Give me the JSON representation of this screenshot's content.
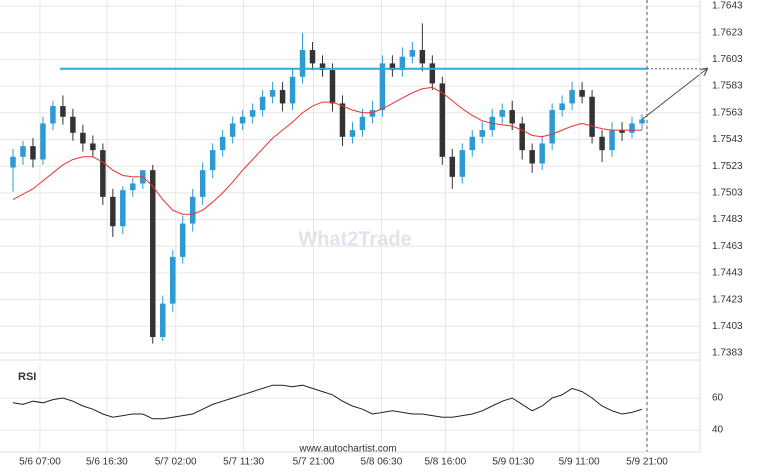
{
  "chart_data": [
    {
      "type": "candlestick",
      "level": 1.7596,
      "level_color": "#2ea8e0",
      "up_color": "#2d9bd2",
      "down_color": "#333333",
      "ma_color": "#e8322f",
      "watermark": "What2Trade",
      "footer": "www.autochartist.com",
      "grid": true,
      "open": [
        1.7522,
        1.753,
        1.7538,
        1.7528,
        1.7555,
        1.7568,
        1.756,
        1.7548,
        1.754,
        1.7535,
        1.75,
        1.7478,
        1.7505,
        1.751,
        1.752,
        1.7395,
        1.742,
        1.7455,
        1.748,
        1.75,
        1.752,
        1.7535,
        1.7545,
        1.7555,
        1.756,
        1.7565,
        1.7575,
        1.758,
        1.757,
        1.759,
        1.761,
        1.76,
        1.7595,
        1.757,
        1.7545,
        1.755,
        1.756,
        1.7565,
        1.76,
        1.7595,
        1.7605,
        1.761,
        1.76,
        1.7585,
        1.753,
        1.7515,
        1.7535,
        1.7545,
        1.755,
        1.756,
        1.7565,
        1.7555,
        1.7535,
        1.7525,
        1.754,
        1.7565,
        1.757,
        1.758,
        1.7575,
        1.7545,
        1.7535,
        1.755,
        1.7548,
        1.7555
      ],
      "high": [
        1.7536,
        1.7542,
        1.7544,
        1.756,
        1.7572,
        1.7576,
        1.7566,
        1.7554,
        1.7546,
        1.754,
        1.7506,
        1.7508,
        1.7514,
        1.7518,
        1.7524,
        1.7426,
        1.746,
        1.7486,
        1.7506,
        1.7526,
        1.754,
        1.755,
        1.756,
        1.7565,
        1.757,
        1.758,
        1.7586,
        1.7586,
        1.7596,
        1.7623,
        1.7616,
        1.7606,
        1.76,
        1.7576,
        1.7556,
        1.7566,
        1.7572,
        1.7606,
        1.7606,
        1.7612,
        1.7616,
        1.763,
        1.7606,
        1.759,
        1.7536,
        1.754,
        1.755,
        1.7556,
        1.7566,
        1.757,
        1.7572,
        1.756,
        1.754,
        1.7546,
        1.757,
        1.7576,
        1.7586,
        1.7586,
        1.758,
        1.755,
        1.7556,
        1.7556,
        1.756,
        1.7562
      ],
      "low": [
        1.7504,
        1.7524,
        1.7522,
        1.7524,
        1.755,
        1.7554,
        1.7542,
        1.7534,
        1.753,
        1.7494,
        1.747,
        1.7472,
        1.75,
        1.7506,
        1.739,
        1.7392,
        1.7414,
        1.745,
        1.7474,
        1.7494,
        1.7514,
        1.753,
        1.754,
        1.755,
        1.7555,
        1.756,
        1.757,
        1.7564,
        1.7565,
        1.7585,
        1.7595,
        1.759,
        1.7564,
        1.7538,
        1.754,
        1.7545,
        1.7555,
        1.756,
        1.759,
        1.759,
        1.76,
        1.7594,
        1.758,
        1.7524,
        1.7506,
        1.751,
        1.753,
        1.754,
        1.7545,
        1.7555,
        1.755,
        1.7528,
        1.7518,
        1.752,
        1.7535,
        1.756,
        1.7565,
        1.757,
        1.754,
        1.7526,
        1.753,
        1.7542,
        1.7544,
        1.755
      ],
      "close": [
        1.753,
        1.7538,
        1.7528,
        1.7555,
        1.7568,
        1.756,
        1.7548,
        1.754,
        1.7535,
        1.75,
        1.7478,
        1.7505,
        1.751,
        1.752,
        1.7395,
        1.742,
        1.7455,
        1.748,
        1.75,
        1.752,
        1.7535,
        1.7545,
        1.7555,
        1.756,
        1.7565,
        1.7575,
        1.758,
        1.757,
        1.759,
        1.761,
        1.76,
        1.7595,
        1.757,
        1.7545,
        1.755,
        1.756,
        1.7565,
        1.76,
        1.7595,
        1.7605,
        1.761,
        1.76,
        1.7585,
        1.753,
        1.7515,
        1.7535,
        1.7545,
        1.755,
        1.756,
        1.7565,
        1.7555,
        1.7535,
        1.7525,
        1.754,
        1.7565,
        1.757,
        1.758,
        1.7575,
        1.7545,
        1.7535,
        1.755,
        1.7548,
        1.7555,
        1.7558
      ],
      "ma": [
        1.7498,
        1.7502,
        1.7506,
        1.7512,
        1.7518,
        1.7524,
        1.7528,
        1.753,
        1.753,
        1.7526,
        1.752,
        1.7516,
        1.7515,
        1.7515,
        1.7508,
        1.7498,
        1.749,
        1.7487,
        1.7487,
        1.749,
        1.7496,
        1.7503,
        1.7511,
        1.752,
        1.7528,
        1.7536,
        1.7544,
        1.755,
        1.7556,
        1.7563,
        1.7568,
        1.7571,
        1.7571,
        1.7568,
        1.7565,
        1.7563,
        1.7563,
        1.7566,
        1.757,
        1.7574,
        1.7578,
        1.7581,
        1.7582,
        1.7578,
        1.7572,
        1.7566,
        1.7561,
        1.7557,
        1.7555,
        1.7554,
        1.7553,
        1.755,
        1.7546,
        1.7545,
        1.7547,
        1.755,
        1.7553,
        1.7555,
        1.7553,
        1.7551,
        1.755,
        1.755,
        1.755,
        1.755
      ],
      "xlim": [
        0,
        64
      ],
      "ylim": [
        1.7383,
        1.7643
      ],
      "yticks": [
        1.7643,
        1.7623,
        1.7603,
        1.7583,
        1.7563,
        1.7543,
        1.7523,
        1.7503,
        1.7483,
        1.7463,
        1.7443,
        1.7423,
        1.7403,
        1.7383
      ],
      "xticks": [
        {
          "value": 3.2,
          "label": "5/6 07:00"
        },
        {
          "value": 9.9,
          "label": "5/6 16:30"
        },
        {
          "value": 16.8,
          "label": "5/7 02:00"
        },
        {
          "value": 23.6,
          "label": "5/7 11:30"
        },
        {
          "value": 30.6,
          "label": "5/7 21:00"
        },
        {
          "value": 37.4,
          "label": "5/8 06:30"
        },
        {
          "value": 43.8,
          "label": "5/8 16:00"
        },
        {
          "value": 50.6,
          "label": "5/9 01:30"
        },
        {
          "value": 57.2,
          "label": "5/9 11:00"
        },
        {
          "value": 64,
          "label": "5/9 21:00"
        }
      ]
    },
    {
      "type": "line",
      "title": "RSI",
      "color": "#222222",
      "values": [
        57,
        56,
        58,
        57,
        59,
        60,
        58,
        55,
        53,
        50,
        48,
        49,
        50,
        50,
        47,
        47,
        48,
        49,
        50,
        53,
        56,
        58,
        60,
        62,
        64,
        66,
        68,
        68,
        67,
        68,
        66,
        64,
        62,
        58,
        55,
        53,
        50,
        51,
        52,
        51,
        50,
        50,
        49,
        48,
        48,
        49,
        50,
        52,
        55,
        58,
        60,
        56,
        52,
        55,
        60,
        62,
        66,
        64,
        60,
        55,
        52,
        50,
        51,
        53
      ],
      "xlim": [
        0,
        64
      ],
      "ylim": [
        30,
        80
      ],
      "yticks": [
        60,
        40
      ]
    }
  ]
}
